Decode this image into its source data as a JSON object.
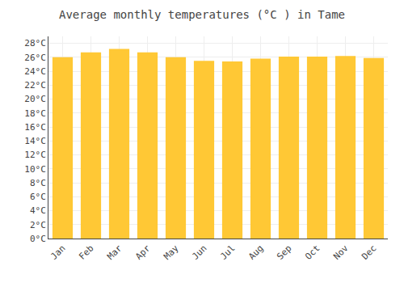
{
  "chart_data": {
    "type": "bar",
    "title": "Average monthly temperatures (°C ) in Tame",
    "categories": [
      "Jan",
      "Feb",
      "Mar",
      "Apr",
      "May",
      "Jun",
      "Jul",
      "Aug",
      "Sep",
      "Oct",
      "Nov",
      "Dec"
    ],
    "values": [
      26.0,
      26.7,
      27.2,
      26.7,
      26.0,
      25.5,
      25.4,
      25.8,
      26.1,
      26.1,
      26.2,
      25.9
    ],
    "color": "#FFC835",
    "ylim": [
      0,
      29
    ],
    "yticks": [
      {
        "value": 0,
        "label": "0°C"
      },
      {
        "value": 2,
        "label": "2°C"
      },
      {
        "value": 4,
        "label": "4°C"
      },
      {
        "value": 6,
        "label": "6°C"
      },
      {
        "value": 8,
        "label": "8°C"
      },
      {
        "value": 10,
        "label": "10°C"
      },
      {
        "value": 12,
        "label": "12°C"
      },
      {
        "value": 14,
        "label": "14°C"
      },
      {
        "value": 16,
        "label": "16°C"
      },
      {
        "value": 18,
        "label": "18°C"
      },
      {
        "value": 20,
        "label": "20°C"
      },
      {
        "value": 22,
        "label": "22°C"
      },
      {
        "value": 24,
        "label": "24°C"
      },
      {
        "value": 26,
        "label": "26°C"
      },
      {
        "value": 28,
        "label": "28°C"
      }
    ],
    "grid": true
  }
}
